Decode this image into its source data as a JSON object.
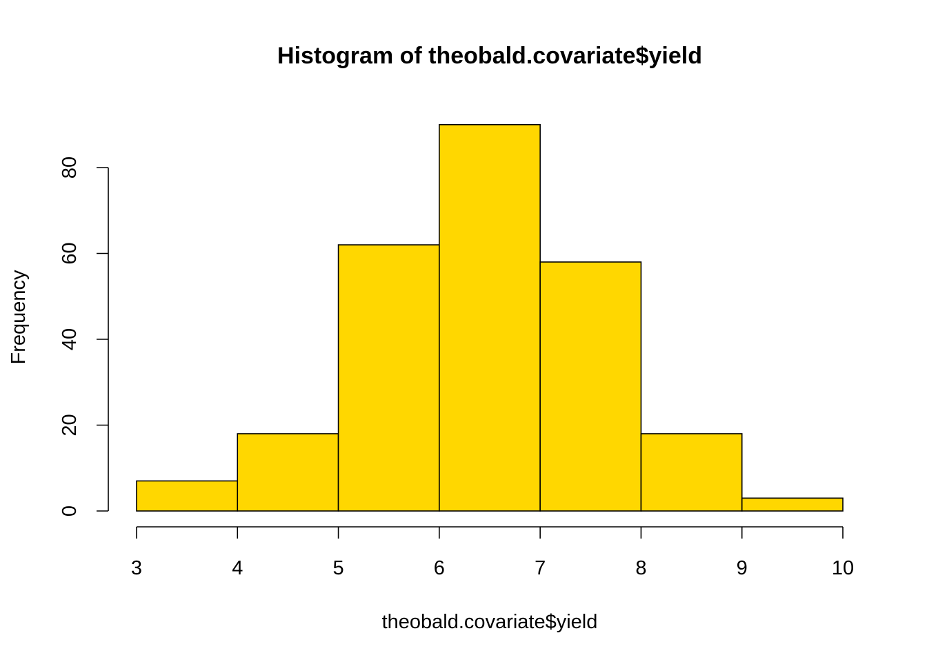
{
  "chart_data": {
    "type": "bar",
    "title": "Histogram of theobald.covariate$yield",
    "xlabel": "theobald.covariate$yield",
    "ylabel": "Frequency",
    "bins": [
      {
        "from": 3,
        "to": 4,
        "count": 7
      },
      {
        "from": 4,
        "to": 5,
        "count": 18
      },
      {
        "from": 5,
        "to": 6,
        "count": 62
      },
      {
        "from": 6,
        "to": 7,
        "count": 90
      },
      {
        "from": 7,
        "to": 8,
        "count": 58
      },
      {
        "from": 8,
        "to": 9,
        "count": 18
      },
      {
        "from": 9,
        "to": 10,
        "count": 3
      }
    ],
    "xlim": [
      3,
      10
    ],
    "ylim": [
      0,
      90
    ],
    "x_ticks": [
      "3",
      "4",
      "5",
      "6",
      "7",
      "8",
      "9",
      "10"
    ],
    "y_ticks": [
      "0",
      "20",
      "40",
      "60",
      "80"
    ],
    "bar_color": "#FFD700",
    "grid": false,
    "legend": "none"
  }
}
